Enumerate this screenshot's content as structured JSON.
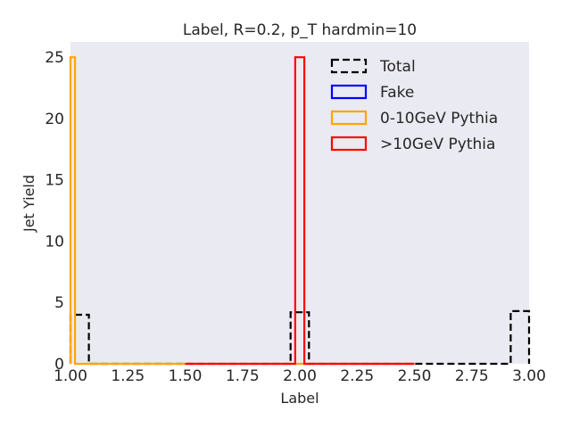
{
  "chart_data": {
    "type": "histogram",
    "title": "Label, R=0.2, p_T hardmin=10",
    "xlabel": "Label",
    "ylabel": "Jet Yield",
    "xlim": [
      1.0,
      3.0
    ],
    "ylim": [
      0,
      26.25
    ],
    "xticks": [
      "1.00",
      "1.25",
      "1.50",
      "1.75",
      "2.00",
      "2.25",
      "2.50",
      "2.75",
      "3.00"
    ],
    "yticks": [
      "0",
      "5",
      "10",
      "15",
      "20",
      "25"
    ],
    "legend_position": "upper right",
    "grid": false,
    "background": "#eaeaf2",
    "series": [
      {
        "name": "Total",
        "color": "#000000",
        "style": "dashed",
        "bins": [
          {
            "x0": 1.0,
            "x1": 1.08,
            "y": 4.0
          },
          {
            "x0": 1.08,
            "x1": 1.96,
            "y": 0
          },
          {
            "x0": 1.96,
            "x1": 2.04,
            "y": 4.2
          },
          {
            "x0": 2.04,
            "x1": 2.92,
            "y": 0
          },
          {
            "x0": 2.92,
            "x1": 3.0,
            "y": 4.3
          }
        ]
      },
      {
        "name": "Fake",
        "color": "#0000ff",
        "style": "solid",
        "bins": []
      },
      {
        "name": "0-10GeV Pythia",
        "color": "#ffa500",
        "style": "solid",
        "bins": [
          {
            "x0": 1.0,
            "x1": 1.02,
            "y": 25
          },
          {
            "x0": 1.02,
            "x1": 2.5,
            "y": 0
          }
        ]
      },
      {
        "name": ">10GeV Pythia",
        "color": "#ff0000",
        "style": "solid",
        "bins": [
          {
            "x0": 1.5,
            "x1": 1.98,
            "y": 0
          },
          {
            "x0": 1.98,
            "x1": 2.02,
            "y": 25
          },
          {
            "x0": 2.02,
            "x1": 2.5,
            "y": 0
          }
        ]
      }
    ]
  }
}
